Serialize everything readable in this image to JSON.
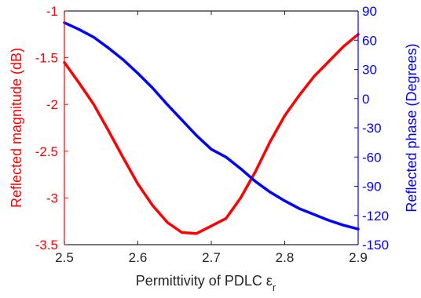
{
  "chart_data": {
    "type": "line",
    "xlabel": "Permittivity of PDLC ε",
    "xlabel_subscript": "r",
    "ylabel_left": "Reflected magnitude (dB)",
    "ylabel_right": "Reflected phase (Degrees)",
    "xlim": [
      2.5,
      2.9
    ],
    "ylim_left": [
      -3.5,
      -1
    ],
    "ylim_right": [
      -150,
      90
    ],
    "xticks": [
      "2.5",
      "2.6",
      "2.7",
      "2.8",
      "2.9"
    ],
    "yticks_left": [
      "-3.5",
      "-3",
      "-2.5",
      "-2",
      "-1.5",
      "-1"
    ],
    "yticks_right": [
      "-150",
      "-120",
      "-90",
      "-60",
      "-30",
      "0",
      "30",
      "60",
      "90"
    ],
    "grid": false,
    "colors": {
      "left_axis": "#ff0000",
      "right_axis": "#0000ff",
      "magnitude": "#ff0000",
      "phase": "#0000ff",
      "x_axis": "#262626"
    },
    "series": [
      {
        "axis": "left",
        "x": [
          2.5,
          2.52,
          2.54,
          2.56,
          2.58,
          2.6,
          2.62,
          2.64,
          2.66,
          2.68,
          2.7,
          2.72,
          2.74,
          2.76,
          2.78,
          2.8,
          2.82,
          2.84,
          2.86,
          2.88,
          2.9
        ],
        "values": [
          -1.55,
          -1.77,
          -2.0,
          -2.28,
          -2.57,
          -2.85,
          -3.08,
          -3.26,
          -3.37,
          -3.38,
          -3.3,
          -3.22,
          -3.0,
          -2.72,
          -2.4,
          -2.12,
          -1.9,
          -1.7,
          -1.54,
          -1.38,
          -1.25
        ]
      },
      {
        "axis": "right",
        "x": [
          2.5,
          2.52,
          2.54,
          2.56,
          2.58,
          2.6,
          2.62,
          2.64,
          2.66,
          2.68,
          2.7,
          2.72,
          2.74,
          2.76,
          2.78,
          2.8,
          2.82,
          2.84,
          2.86,
          2.88,
          2.9
        ],
        "values": [
          78,
          71,
          63,
          52,
          40,
          26,
          11,
          -6,
          -22,
          -38,
          -52,
          -60,
          -72,
          -85,
          -96,
          -105,
          -113,
          -119,
          -125,
          -130,
          -134
        ]
      }
    ]
  }
}
